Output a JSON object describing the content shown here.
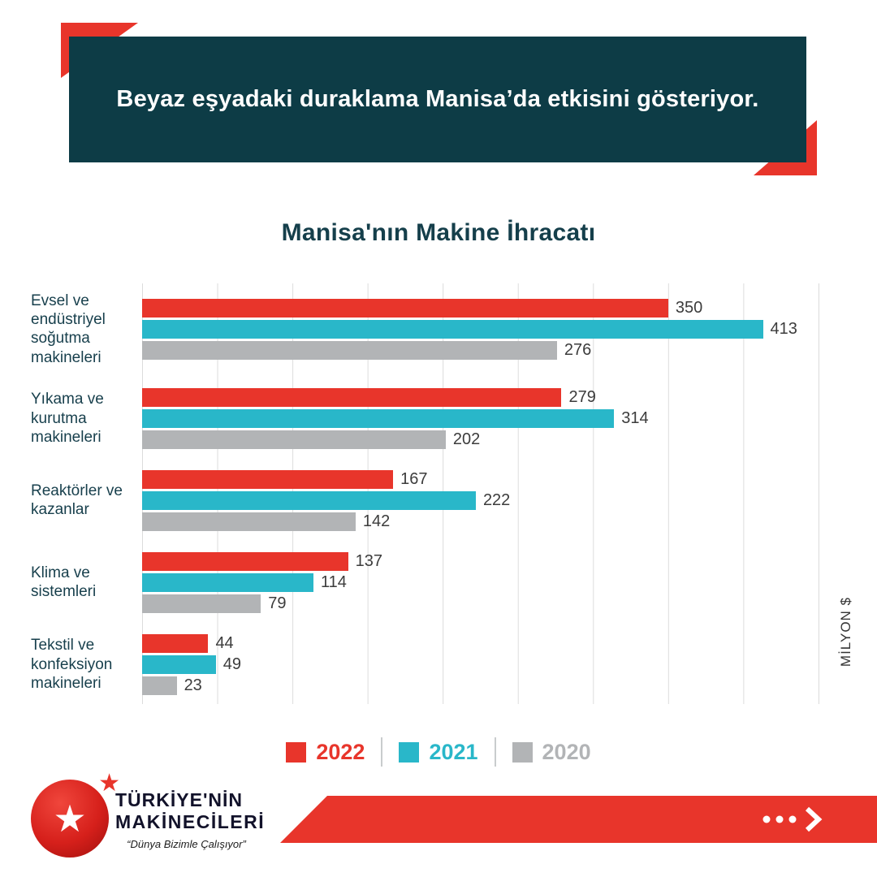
{
  "header": {
    "title": "Beyaz eşyadaki duraklama Manisa’da etkisini gösteriyor.",
    "bg_color": "#0d3c46",
    "accent_color": "#e8352b"
  },
  "chart_data": {
    "type": "bar",
    "orientation": "horizontal",
    "title": "Manisa'nın Makine İhracatı",
    "unit_label": "MİLYON $",
    "categories": [
      "Evsel ve endüstriyel soğutma makineleri",
      "Yıkama ve kurutma makineleri",
      "Reaktörler ve kazanlar",
      "Klima ve sistemleri",
      "Tekstil ve konfeksiyon makineleri"
    ],
    "series": [
      {
        "name": "2022",
        "color": "#e8352b",
        "values": [
          350,
          279,
          167,
          137,
          44
        ]
      },
      {
        "name": "2021",
        "color": "#29b7c9",
        "values": [
          413,
          314,
          222,
          114,
          49
        ]
      },
      {
        "name": "2020",
        "color": "#b2b4b6",
        "values": [
          276,
          202,
          142,
          79,
          23
        ]
      }
    ],
    "xlim": [
      0,
      450
    ],
    "gridline_interval": 50,
    "grid": true,
    "legend_position": "bottom"
  },
  "footer": {
    "brand_line1": "TÜRKİYE'NİN",
    "brand_line2": "MAKİNECİLERİ",
    "tagline": "“Dünya Bizimle Çalışıyor”"
  }
}
